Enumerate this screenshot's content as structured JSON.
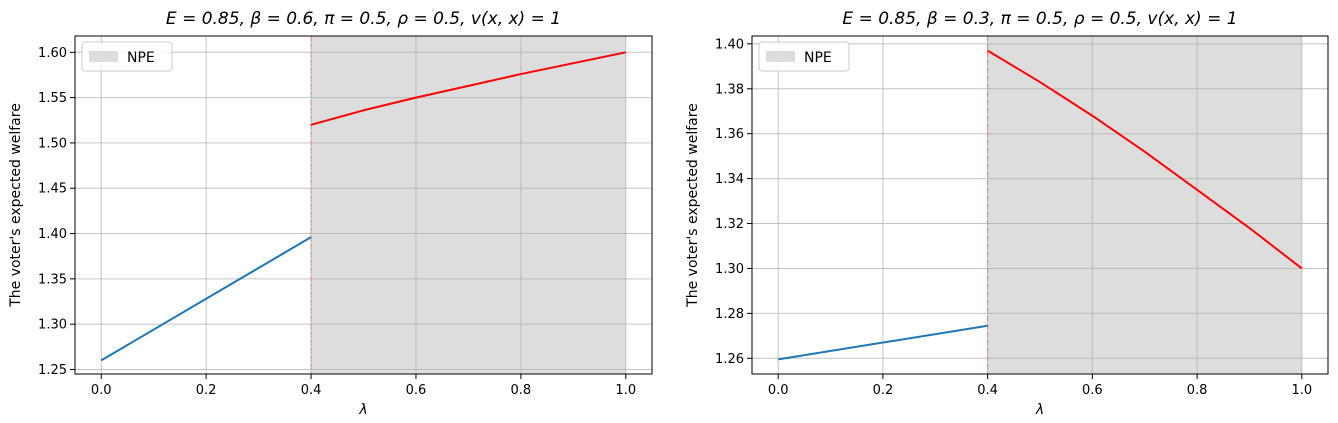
{
  "chart_data": [
    {
      "type": "line",
      "title": "E = 0.85, β = 0.6, π = 0.5, ρ = 0.5, v(x, x) = 1",
      "xlabel": "λ",
      "ylabel": "The voter's expected welfare",
      "xlim": [
        -0.05,
        1.05
      ],
      "ylim": [
        1.245,
        1.618
      ],
      "xticks": [
        0.0,
        0.2,
        0.4,
        0.6,
        0.8,
        1.0
      ],
      "xtick_labels": [
        "0.0",
        "0.2",
        "0.4",
        "0.6",
        "0.8",
        "1.0"
      ],
      "yticks": [
        1.25,
        1.3,
        1.35,
        1.4,
        1.45,
        1.5,
        1.55,
        1.6
      ],
      "ytick_labels": [
        "1.25",
        "1.30",
        "1.35",
        "1.40",
        "1.45",
        "1.50",
        "1.55",
        "1.60"
      ],
      "grid": true,
      "legend_position": "top-left",
      "shaded_region": {
        "label": "NPE",
        "x_start": 0.4,
        "x_end": 1.0,
        "color": "#dddddd"
      },
      "threshold_line": {
        "x": 0.4,
        "color": "#e08080"
      },
      "series": [
        {
          "color": "#1f77b4",
          "points": [
            [
              0.0,
              1.26
            ],
            [
              0.4,
              1.396
            ]
          ]
        },
        {
          "color": "#ff0000",
          "points": [
            [
              0.4,
              1.52
            ],
            [
              0.5,
              1.536
            ],
            [
              0.6,
              1.55
            ],
            [
              0.7,
              1.563
            ],
            [
              0.8,
              1.576
            ],
            [
              0.9,
              1.588
            ],
            [
              1.0,
              1.6
            ]
          ]
        }
      ]
    },
    {
      "type": "line",
      "title": "E = 0.85, β = 0.3, π = 0.5, ρ = 0.5, v(x, x) = 1",
      "xlabel": "λ",
      "ylabel": "The voter's expected welfare",
      "xlim": [
        -0.05,
        1.05
      ],
      "ylim": [
        1.253,
        1.4035
      ],
      "xticks": [
        0.0,
        0.2,
        0.4,
        0.6,
        0.8,
        1.0
      ],
      "xtick_labels": [
        "0.0",
        "0.2",
        "0.4",
        "0.6",
        "0.8",
        "1.0"
      ],
      "yticks": [
        1.26,
        1.28,
        1.3,
        1.32,
        1.34,
        1.36,
        1.38,
        1.4
      ],
      "ytick_labels": [
        "1.26",
        "1.28",
        "1.30",
        "1.32",
        "1.34",
        "1.36",
        "1.38",
        "1.40"
      ],
      "grid": true,
      "legend_position": "top-left",
      "shaded_region": {
        "label": "NPE",
        "x_start": 0.4,
        "x_end": 1.0,
        "color": "#dddddd"
      },
      "threshold_line": {
        "x": 0.4,
        "color": "#e08080"
      },
      "series": [
        {
          "color": "#1f77b4",
          "points": [
            [
              0.0,
              1.2595
            ],
            [
              0.4,
              1.2745
            ]
          ]
        },
        {
          "color": "#ff0000",
          "points": [
            [
              0.4,
              1.397
            ],
            [
              0.5,
              1.383
            ],
            [
              0.6,
              1.368
            ],
            [
              0.7,
              1.352
            ],
            [
              0.8,
              1.335
            ],
            [
              0.9,
              1.318
            ],
            [
              1.0,
              1.3
            ]
          ]
        }
      ]
    }
  ]
}
